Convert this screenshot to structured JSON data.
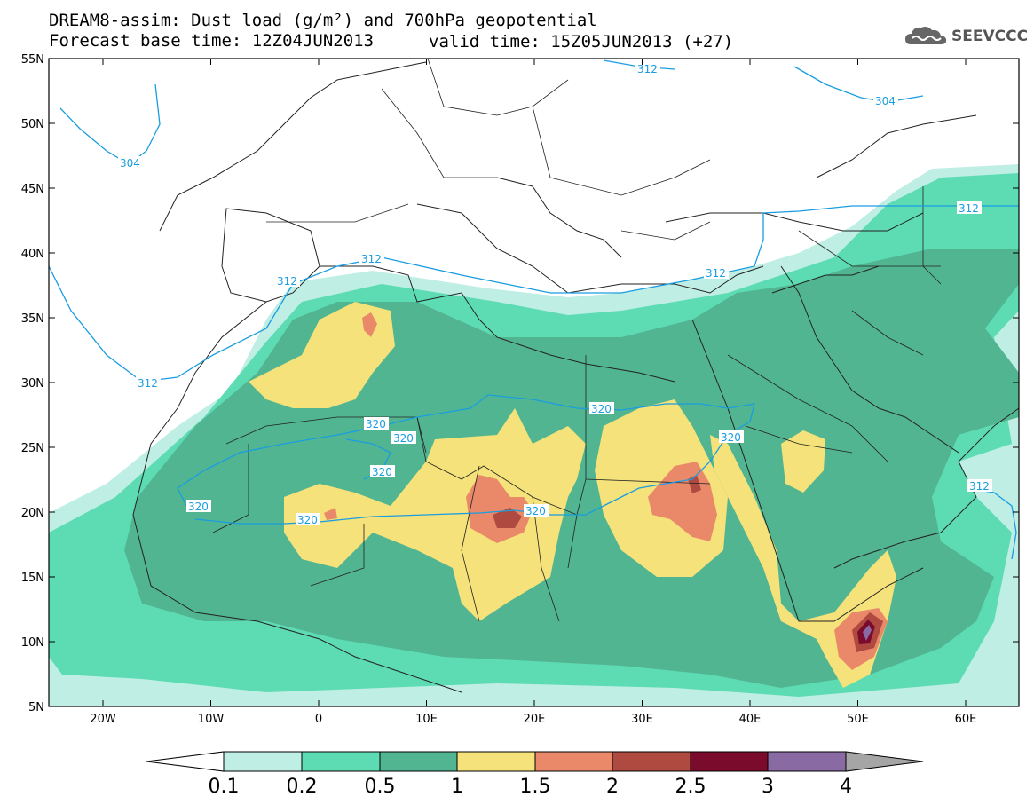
{
  "header": {
    "title_line1": "DREAM8-assim: Dust load (g/m²) and 700hPa geopotential",
    "title_line2": "Forecast base time: 12Z04JUN2013",
    "valid_time": "valid time: 15Z05JUN2013 (+27)"
  },
  "logo": {
    "text": "SEEVCCC",
    "icon": "cloud-icon"
  },
  "axes": {
    "lat_labels": [
      "55N",
      "50N",
      "45N",
      "40N",
      "35N",
      "30N",
      "25N",
      "20N",
      "15N",
      "10N",
      "5N"
    ],
    "lon_labels": [
      "20W",
      "10W",
      "0",
      "10E",
      "20E",
      "30E",
      "40E",
      "50E",
      "60E"
    ]
  },
  "colors": {
    "c0": "#bfeee4",
    "c1": "#5ddcb4",
    "c2": "#52b591",
    "c3": "#f5e27a",
    "c4": "#e9896a",
    "c5": "#ae4a3f",
    "c6": "#7a0b2c",
    "c7": "#8a6aa3",
    "c8": "#a5a5a5",
    "contour": "#1a9de0"
  },
  "colorbar": {
    "labels": [
      "0.1",
      "0.2",
      "0.5",
      "1",
      "1.5",
      "2",
      "2.5",
      "3",
      "4"
    ]
  },
  "contours": {
    "labels": [
      "304",
      "304",
      "312",
      "312",
      "312",
      "312",
      "312",
      "312",
      "320",
      "320",
      "320",
      "320",
      "320",
      "320"
    ]
  }
}
